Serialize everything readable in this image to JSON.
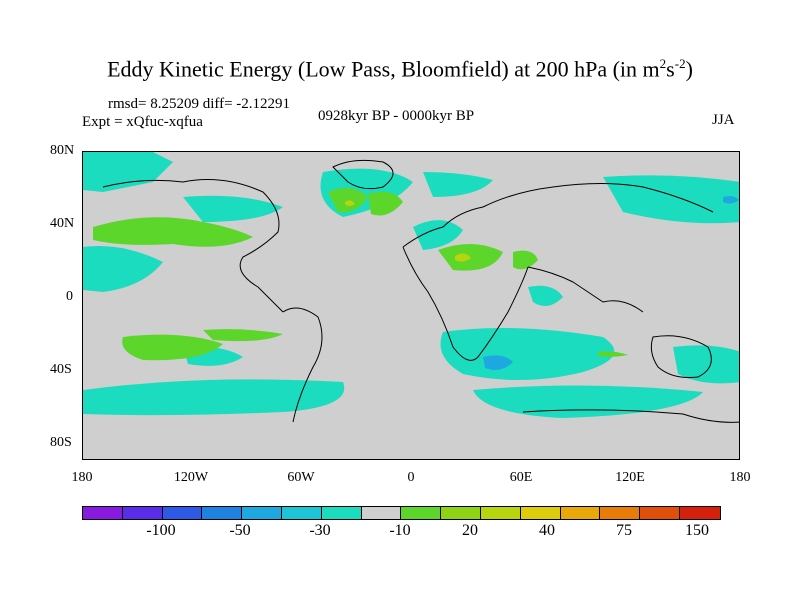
{
  "title_main": "Eddy Kinetic Energy (Low Pass, Bloomfield) at 200 hPa (in m",
  "title_sup1": "2",
  "title_mid": "s",
  "title_sup2": "-2",
  "title_end": ")",
  "stats": "rmsd= 8.25209 diff= -2.12291",
  "experiment": "Expt = xQfuc-xqfua",
  "period": "0928kyr BP - 0000kyr BP",
  "season": "JJA",
  "lat_labels": [
    "80N",
    "40N",
    "0",
    "40S",
    "80S"
  ],
  "lon_labels": [
    "180",
    "120W",
    "60W",
    "0",
    "60E",
    "120E",
    "180"
  ],
  "colorbar": {
    "colors": [
      "#8a1ae0",
      "#5a2ee8",
      "#2e58e6",
      "#1e82e0",
      "#1ea8e0",
      "#1cc4d8",
      "#1cdcc0",
      "#cfcfcf",
      "#5cd62a",
      "#8ed414",
      "#b8d40e",
      "#dccc0c",
      "#e8a80a",
      "#e87c08",
      "#e0500a",
      "#d4200c"
    ],
    "labels": [
      "-100",
      "-50",
      "-30",
      "-10",
      "20",
      "40",
      "75",
      "150"
    ]
  },
  "colors": {
    "cyan": "#1cdcc0",
    "green": "#5cd62a",
    "yellowgreen": "#b8d40e",
    "blue": "#1ea8e0",
    "land_bg": "#cfcfcf"
  }
}
